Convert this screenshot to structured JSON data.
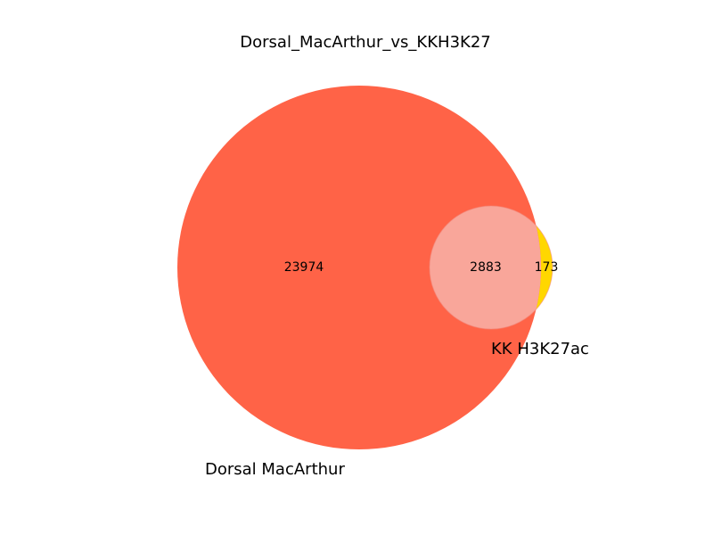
{
  "chart_data": {
    "type": "venn",
    "title": "Dorsal_MacArthur_vs_KKH3K27",
    "sets": [
      {
        "name": "Dorsal MacArthur",
        "color": "#ff6347"
      },
      {
        "name": "KK H3K27ac",
        "color": "#ffd700"
      }
    ],
    "overlap_color": "#f9a69a",
    "values": {
      "only_a": 23974,
      "both": 2883,
      "only_b": 173
    },
    "labels": {
      "only_a": "23974",
      "both": "2883",
      "only_b": "173"
    }
  }
}
